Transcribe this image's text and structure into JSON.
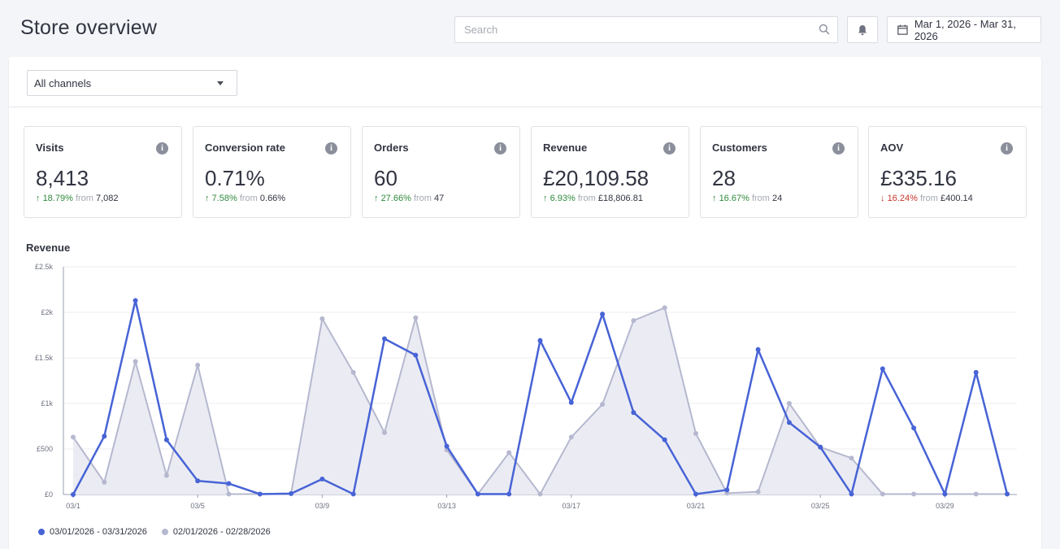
{
  "header": {
    "title": "Store overview",
    "search_placeholder": "Search",
    "date_range": "Mar 1, 2026 - Mar 31, 2026"
  },
  "filter": {
    "channel": "All channels"
  },
  "kpis": [
    {
      "label": "Visits",
      "value": "8,413",
      "change": "18.79%",
      "direction": "up",
      "from_label": "from",
      "previous": "7,082"
    },
    {
      "label": "Conversion rate",
      "value": "0.71%",
      "change": "7.58%",
      "direction": "up",
      "from_label": "from",
      "previous": "0.66%"
    },
    {
      "label": "Orders",
      "value": "60",
      "change": "27.66%",
      "direction": "up",
      "from_label": "from",
      "previous": "47"
    },
    {
      "label": "Revenue",
      "value": "£20,109.58",
      "change": "6.93%",
      "direction": "up",
      "from_label": "from",
      "previous": "£18,806.81"
    },
    {
      "label": "Customers",
      "value": "28",
      "change": "16.67%",
      "direction": "up",
      "from_label": "from",
      "previous": "24"
    },
    {
      "label": "AOV",
      "value": "£335.16",
      "change": "16.24%",
      "direction": "down",
      "from_label": "from",
      "previous": "£400.14"
    }
  ],
  "colors": {
    "current": "#4763d6",
    "previous": "#b5b8cf",
    "previous_fill": "#ebecf3",
    "up": "#2f8a3c",
    "down": "#c8352d"
  },
  "chart_data": {
    "type": "line",
    "title": "Revenue",
    "x": [
      "03/1",
      "03/2",
      "03/3",
      "03/4",
      "03/5",
      "03/6",
      "03/7",
      "03/8",
      "03/9",
      "03/10",
      "03/11",
      "03/12",
      "03/13",
      "03/14",
      "03/15",
      "03/16",
      "03/17",
      "03/18",
      "03/19",
      "03/20",
      "03/21",
      "03/22",
      "03/23",
      "03/24",
      "03/25",
      "03/26",
      "03/27",
      "03/28",
      "03/29",
      "03/30",
      "03/31"
    ],
    "x_tick_labels": [
      "03/1",
      "03/5",
      "03/9",
      "03/13",
      "03/17",
      "03/21",
      "03/25",
      "03/29"
    ],
    "y_ticks": [
      0,
      500,
      1000,
      1500,
      2000,
      2500
    ],
    "y_tick_labels": [
      "£0",
      "£500",
      "£1k",
      "£1.5k",
      "£2k",
      "£2.5k"
    ],
    "ylim": [
      0,
      2500
    ],
    "grid": true,
    "legend_position": "bottom-left",
    "series": [
      {
        "name": "03/01/2026 - 03/31/2026",
        "style": "line",
        "values": [
          0,
          640,
          2130,
          600,
          150,
          120,
          5,
          10,
          170,
          5,
          1710,
          1530,
          530,
          5,
          5,
          1690,
          1010,
          1980,
          900,
          600,
          5,
          50,
          1590,
          790,
          520,
          5,
          1380,
          730,
          5,
          1340,
          5
        ]
      },
      {
        "name": "02/01/2026 - 02/28/2026",
        "style": "area",
        "values": [
          630,
          135,
          1460,
          210,
          1420,
          5,
          5,
          10,
          1930,
          1340,
          680,
          1940,
          490,
          5,
          460,
          5,
          630,
          990,
          1910,
          2050,
          670,
          15,
          30,
          1000,
          520,
          400,
          5,
          5,
          5,
          5,
          5
        ]
      }
    ]
  }
}
